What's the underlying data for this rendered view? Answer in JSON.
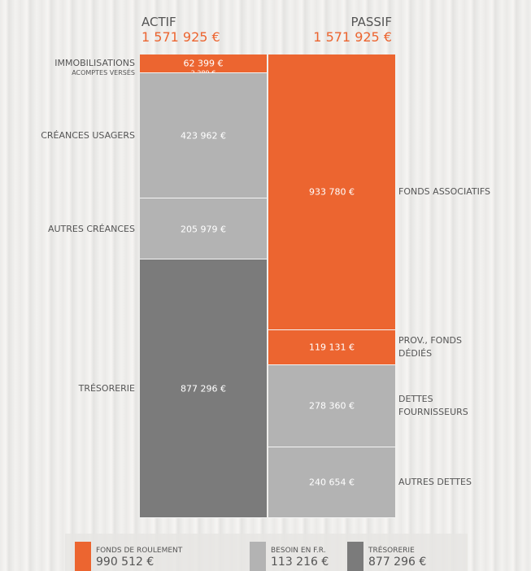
{
  "chart_data": {
    "type": "bar",
    "stacked": true,
    "columns": [
      {
        "title": "ACTIF",
        "total": 1571925,
        "total_label": "1 571 925 €",
        "categories": [
          "IMMOBILISATIONS",
          "ACOMPTES VERSÉS",
          "CRÉANCES USAGERS",
          "AUTRES CRÉANCES",
          "TRÉSORERIE"
        ],
        "values": [
          62399,
          2289,
          423962,
          205979,
          877296
        ],
        "value_labels": [
          "62 399 €",
          "2 289 €",
          "423 962 €",
          "205 979 €",
          "877 296 €"
        ],
        "colors": [
          "#ec6530",
          "#b3b3b3",
          "#b3b3b3",
          "#b3b3b3",
          "#7b7b7b"
        ]
      },
      {
        "title": "PASSIF",
        "total": 1571925,
        "total_label": "1 571 925 €",
        "categories": [
          "FONDS ASSOCIATIFS",
          "PROV., FONDS DÉDIÉS",
          "DETTES FOURNISSEURS",
          "AUTRES DETTES"
        ],
        "values": [
          933780,
          119131,
          278360,
          240654
        ],
        "value_labels": [
          "933 780 €",
          "119 131 €",
          "278 360 €",
          "240 654 €"
        ],
        "colors": [
          "#ec6530",
          "#ec6530",
          "#b3b3b3",
          "#b3b3b3"
        ]
      }
    ],
    "legend": [
      {
        "name": "FONDS DE ROULEMENT",
        "value": 990512,
        "value_label": "990 512 €",
        "color": "#ec6530"
      },
      {
        "name": "BESOIN EN F.R.",
        "value": 113216,
        "value_label": "113 216 €",
        "color": "#b3b3b3"
      },
      {
        "name": "TRÉSORERIE",
        "value": 877296,
        "value_label": "877 296 €",
        "color": "#7b7b7b"
      }
    ]
  }
}
